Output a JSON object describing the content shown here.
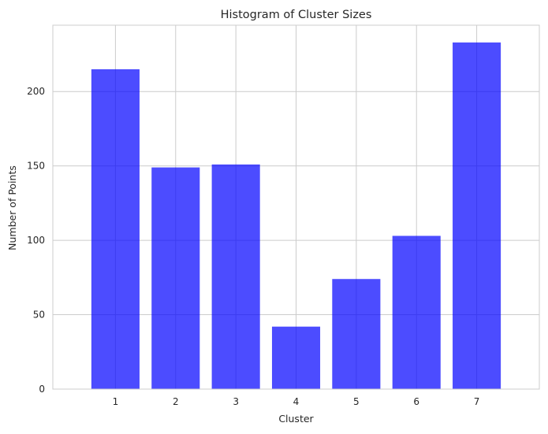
{
  "chart_data": {
    "type": "bar",
    "title": "Histogram of Cluster Sizes",
    "xlabel": "Cluster",
    "ylabel": "Number of Points",
    "categories": [
      "1",
      "2",
      "3",
      "4",
      "5",
      "6",
      "7"
    ],
    "values": [
      215,
      149,
      151,
      42,
      74,
      103,
      233
    ],
    "ylim": [
      0,
      244.6
    ],
    "yticks": [
      0,
      50,
      100,
      150,
      200
    ],
    "grid": true,
    "bar_color": "#0000ff",
    "bar_opacity": 0.7,
    "background_color": "#ffffff",
    "grid_color": "#cccccc",
    "axis_color": "#cccccc",
    "text_color": "#262626"
  }
}
